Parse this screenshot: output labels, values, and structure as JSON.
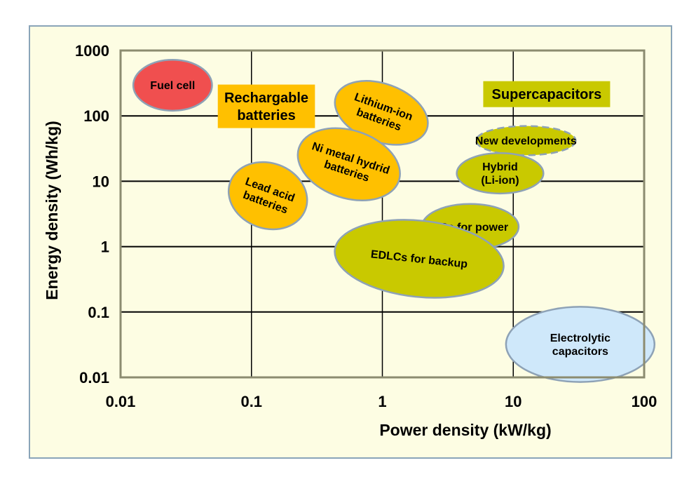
{
  "chart_data": {
    "type": "scatter",
    "xlabel": "Power density (kW/kg)",
    "ylabel": "Energy density (Wh/kg)",
    "x_scale": "log",
    "y_scale": "log",
    "xlim": [
      0.01,
      100
    ],
    "ylim": [
      0.01,
      1000
    ],
    "x_ticks": [
      "0.01",
      "0.1",
      "1",
      "10",
      "100"
    ],
    "y_ticks": [
      "1000",
      "100",
      "10",
      "1",
      "0.1",
      "0.01"
    ],
    "grid": "horizontal",
    "group_labels": [
      {
        "text": "Rechargable\nbatteries",
        "color": "#ffc000",
        "x": 0.13,
        "y": 140
      },
      {
        "text": "Supercapacitors",
        "color": "#c9c900",
        "x": 18,
        "y": 215
      }
    ],
    "regions": [
      {
        "label": "Fuel cell",
        "fill": "#f04f4f",
        "x_range": [
          0.0125,
          0.05
        ],
        "y_range": [
          120,
          720
        ],
        "rotate": 0
      },
      {
        "label": "Lithium-ion\nbatteries",
        "fill": "#ffc000",
        "x_range": [
          0.42,
          2.3
        ],
        "y_range": [
          40,
          310
        ],
        "rotate": 20
      },
      {
        "label": "Ni metal hydrid\nbatteries",
        "fill": "#ffc000",
        "x_range": [
          0.22,
          1.4
        ],
        "y_range": [
          5.5,
          60
        ],
        "rotate": 18
      },
      {
        "label": "Lead acid\nbatteries",
        "fill": "#ffc000",
        "x_range": [
          0.066,
          0.27
        ],
        "y_range": [
          1.9,
          19
        ],
        "rotate": 20
      },
      {
        "label": "New developments",
        "fill": "#c9c900",
        "x_range": [
          5.2,
          30
        ],
        "y_range": [
          25,
          70
        ],
        "rotate": 0,
        "dashed": true
      },
      {
        "label": "Hybrid\n(Li-ion)",
        "fill": "#c9c900",
        "x_range": [
          3.7,
          17
        ],
        "y_range": [
          6.5,
          27
        ],
        "rotate": 0
      },
      {
        "label": "SCs for power",
        "fill": "#c9c900",
        "x_range": [
          2.0,
          11
        ],
        "y_range": [
          0.9,
          4.5
        ],
        "rotate": 0
      },
      {
        "label": "EDLCs for backup",
        "fill": "#c9c900",
        "x_range": [
          0.43,
          8.5
        ],
        "y_range": [
          0.17,
          2.5
        ],
        "rotate": 6
      },
      {
        "label": "Electrolytic\ncapacitors",
        "fill": "#cfe8fa",
        "x_range": [
          8.8,
          120
        ],
        "y_range": [
          0.0085,
          0.12
        ],
        "rotate": 0
      }
    ]
  }
}
